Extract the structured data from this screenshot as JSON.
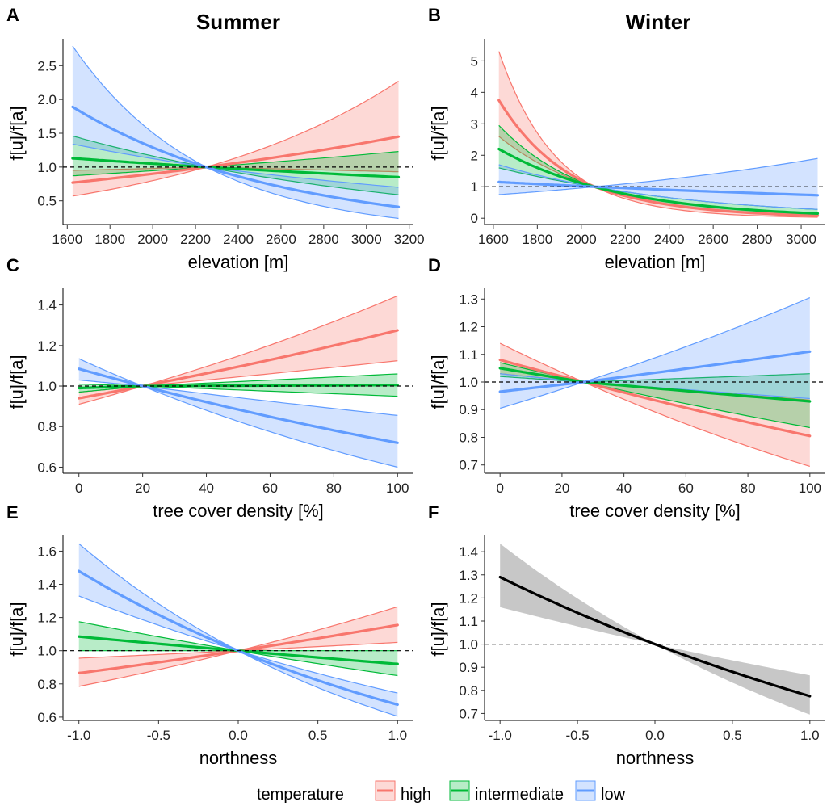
{
  "columns": {
    "summer": "Summer",
    "winter": "Winter"
  },
  "legend": {
    "title": "temperature",
    "items": [
      {
        "key": "high",
        "label": "high",
        "color": "#F8766D"
      },
      {
        "key": "intermediate",
        "label": "intermediate",
        "color": "#00BA38"
      },
      {
        "key": "low",
        "label": "low",
        "color": "#619CFF"
      }
    ]
  },
  "colors": {
    "high": "#F8766D",
    "intermediate": "#00BA38",
    "low": "#619CFF",
    "single": "#000000",
    "single_band": "#BDBDBD"
  },
  "chart_data": [
    {
      "panel": "A",
      "type": "line",
      "column": "Summer",
      "xlabel": "elevation [m]",
      "ylabel": "f[u]/f[a]",
      "xlim": [
        1580,
        3220
      ],
      "ylim": [
        0.15,
        2.85
      ],
      "xticks": [
        1600,
        1800,
        2000,
        2200,
        2400,
        2600,
        2800,
        3000,
        3200
      ],
      "yticks": [
        0.5,
        1.0,
        1.5,
        2.0,
        2.5
      ],
      "ytick_labels": [
        "0.5",
        "1.0",
        "1.5",
        "2.0",
        "2.5"
      ],
      "reference_line": 1.0,
      "series": [
        {
          "name": "high",
          "x": [
            1625,
            2250,
            3150
          ],
          "y": [
            0.77,
            1.0,
            1.45
          ],
          "lower": [
            0.57,
            1.0,
            0.93
          ],
          "upper": [
            0.95,
            1.0,
            2.27
          ]
        },
        {
          "name": "intermediate",
          "x": [
            1625,
            2250,
            3150
          ],
          "y": [
            1.13,
            1.0,
            0.85
          ],
          "lower": [
            0.87,
            1.0,
            0.59
          ],
          "upper": [
            1.46,
            1.0,
            1.23
          ]
        },
        {
          "name": "low",
          "x": [
            1625,
            2250,
            3150
          ],
          "y": [
            1.89,
            1.0,
            0.41
          ],
          "lower": [
            1.34,
            1.0,
            0.24
          ],
          "upper": [
            2.79,
            1.0,
            0.7
          ]
        }
      ]
    },
    {
      "panel": "B",
      "type": "line",
      "column": "Winter",
      "xlabel": "elevation [m]",
      "ylabel": "f[u]/f[a]",
      "xlim": [
        1560,
        3110
      ],
      "ylim": [
        -0.2,
        5.6
      ],
      "xticks": [
        1600,
        1800,
        2000,
        2200,
        2400,
        2600,
        2800,
        3000
      ],
      "yticks": [
        0,
        1,
        2,
        3,
        4,
        5
      ],
      "ytick_labels": [
        "0",
        "1",
        "2",
        "3",
        "4",
        "5"
      ],
      "reference_line": 1.0,
      "series": [
        {
          "name": "high",
          "x": [
            1625,
            2060,
            3075
          ],
          "y": [
            3.75,
            1.0,
            0.08
          ],
          "lower": [
            2.6,
            1.0,
            0.03
          ],
          "upper": [
            5.3,
            1.0,
            0.15
          ]
        },
        {
          "name": "intermediate",
          "x": [
            1625,
            2060,
            3075
          ],
          "y": [
            2.2,
            1.0,
            0.15
          ],
          "lower": [
            1.6,
            1.0,
            0.07
          ],
          "upper": [
            2.95,
            1.0,
            0.28
          ]
        },
        {
          "name": "low",
          "x": [
            1625,
            2060,
            3075
          ],
          "y": [
            1.15,
            1.0,
            0.73
          ],
          "lower": [
            0.75,
            1.0,
            0.28
          ],
          "upper": [
            1.7,
            1.0,
            1.9
          ]
        }
      ]
    },
    {
      "panel": "C",
      "type": "line",
      "column": "Summer",
      "xlabel": "tree cover density [%]",
      "ylabel": "f[u]/f[a]",
      "xlim": [
        -5,
        105
      ],
      "ylim": [
        0.57,
        1.47
      ],
      "xticks": [
        0,
        20,
        40,
        60,
        80,
        100
      ],
      "yticks": [
        0.6,
        0.8,
        1.0,
        1.2,
        1.4
      ],
      "ytick_labels": [
        "0.6",
        "0.8",
        "1.0",
        "1.2",
        "1.4"
      ],
      "reference_line": 1.0,
      "series": [
        {
          "name": "high",
          "x": [
            0,
            20,
            100
          ],
          "y": [
            0.94,
            1.0,
            1.275
          ],
          "lower": [
            0.91,
            1.0,
            1.125
          ],
          "upper": [
            0.97,
            1.0,
            1.445
          ]
        },
        {
          "name": "intermediate",
          "x": [
            0,
            20,
            100
          ],
          "y": [
            0.99,
            1.0,
            1.005
          ],
          "lower": [
            0.97,
            1.0,
            0.95
          ],
          "upper": [
            1.01,
            1.0,
            1.06
          ]
        },
        {
          "name": "low",
          "x": [
            0,
            20,
            100
          ],
          "y": [
            1.085,
            1.0,
            0.72
          ],
          "lower": [
            1.03,
            1.0,
            0.6
          ],
          "upper": [
            1.135,
            1.0,
            0.855
          ]
        }
      ]
    },
    {
      "panel": "D",
      "type": "line",
      "column": "Winter",
      "xlabel": "tree cover density [%]",
      "ylabel": "f[u]/f[a]",
      "xlim": [
        -5,
        105
      ],
      "ylim": [
        0.67,
        1.33
      ],
      "xticks": [
        0,
        20,
        40,
        60,
        80,
        100
      ],
      "yticks": [
        0.7,
        0.8,
        0.9,
        1.0,
        1.1,
        1.2,
        1.3
      ],
      "ytick_labels": [
        "0.7",
        "0.8",
        "0.9",
        "1.0",
        "1.1",
        "1.2",
        "1.3"
      ],
      "reference_line": 1.0,
      "series": [
        {
          "name": "high",
          "x": [
            0,
            27,
            100
          ],
          "y": [
            1.08,
            1.0,
            0.805
          ],
          "lower": [
            1.03,
            1.0,
            0.695
          ],
          "upper": [
            1.14,
            1.0,
            0.935
          ]
        },
        {
          "name": "intermediate",
          "x": [
            0,
            27,
            100
          ],
          "y": [
            1.05,
            1.0,
            0.93
          ],
          "lower": [
            1.02,
            1.0,
            0.835
          ],
          "upper": [
            1.07,
            1.0,
            1.03
          ]
        },
        {
          "name": "low",
          "x": [
            0,
            27,
            100
          ],
          "y": [
            0.965,
            1.0,
            1.11
          ],
          "lower": [
            0.905,
            1.0,
            0.94
          ],
          "upper": [
            1.03,
            1.0,
            1.305
          ]
        }
      ]
    },
    {
      "panel": "E",
      "type": "line",
      "column": "Summer",
      "xlabel": "northness",
      "ylabel": "f[u]/f[a]",
      "xlim": [
        -1.1,
        1.1
      ],
      "ylim": [
        0.58,
        1.68
      ],
      "xticks": [
        -1.0,
        -0.5,
        0.0,
        0.5,
        1.0
      ],
      "xtick_labels": [
        "-1.0",
        "-0.5",
        "0.0",
        "0.5",
        "1.0"
      ],
      "yticks": [
        0.6,
        0.8,
        1.0,
        1.2,
        1.4,
        1.6
      ],
      "ytick_labels": [
        "0.6",
        "0.8",
        "1.0",
        "1.2",
        "1.4",
        "1.6"
      ],
      "reference_line": 1.0,
      "series": [
        {
          "name": "high",
          "x": [
            -1.0,
            0.0,
            1.0
          ],
          "y": [
            0.865,
            1.0,
            1.155
          ],
          "lower": [
            0.785,
            1.0,
            1.05
          ],
          "upper": [
            0.955,
            1.0,
            1.265
          ]
        },
        {
          "name": "intermediate",
          "x": [
            -1.0,
            0.0,
            1.0
          ],
          "y": [
            1.085,
            1.0,
            0.92
          ],
          "lower": [
            1.0,
            1.0,
            0.85
          ],
          "upper": [
            1.175,
            1.0,
            1.0
          ]
        },
        {
          "name": "low",
          "x": [
            -1.0,
            0.0,
            1.0
          ],
          "y": [
            1.48,
            1.0,
            0.675
          ],
          "lower": [
            1.33,
            1.0,
            0.605
          ],
          "upper": [
            1.645,
            1.0,
            0.745
          ]
        }
      ]
    },
    {
      "panel": "F",
      "type": "line",
      "column": "Winter",
      "xlabel": "northness",
      "ylabel": "f[u]/f[a]",
      "xlim": [
        -1.1,
        1.1
      ],
      "ylim": [
        0.67,
        1.46
      ],
      "xticks": [
        -1.0,
        -0.5,
        0.0,
        0.5,
        1.0
      ],
      "xtick_labels": [
        "-1.0",
        "-0.5",
        "0.0",
        "0.5",
        "1.0"
      ],
      "yticks": [
        0.7,
        0.8,
        0.9,
        1.0,
        1.1,
        1.2,
        1.3,
        1.4
      ],
      "ytick_labels": [
        "0.7",
        "0.8",
        "0.9",
        "1.0",
        "1.1",
        "1.2",
        "1.3",
        "1.4"
      ],
      "reference_line": 1.0,
      "series": [
        {
          "name": "single",
          "x": [
            -1.0,
            0.0,
            1.0
          ],
          "y": [
            1.29,
            1.0,
            0.775
          ],
          "lower": [
            1.16,
            1.0,
            0.695
          ],
          "upper": [
            1.435,
            1.0,
            0.865
          ]
        }
      ]
    }
  ]
}
